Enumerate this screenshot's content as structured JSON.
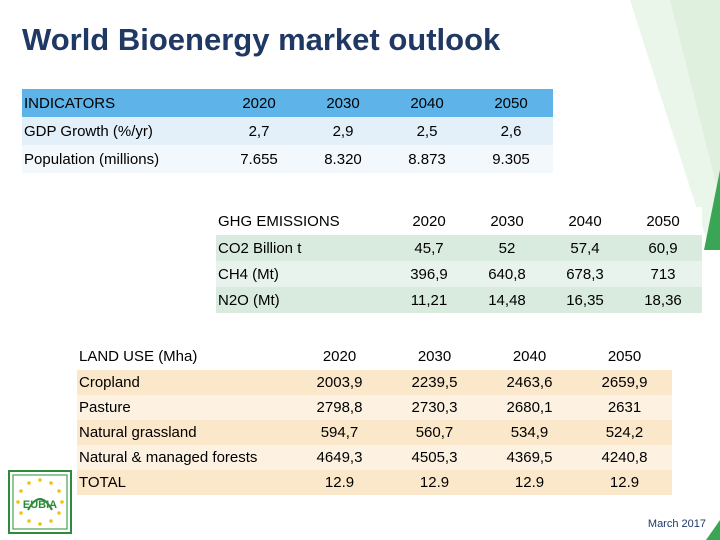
{
  "title": "World Bioenergy market outlook",
  "indicators": {
    "header": [
      "INDICATORS",
      "2020",
      "2030",
      "2040",
      "2050"
    ],
    "rows": [
      {
        "label": "GDP Growth (%/yr)",
        "values": [
          "2,7",
          "2,9",
          "2,5",
          "2,6"
        ]
      },
      {
        "label": "Population (millions)",
        "values": [
          "7.655",
          "8.320",
          "8.873",
          "9.305"
        ]
      }
    ]
  },
  "ghg": {
    "header": [
      "GHG EMISSIONS",
      "2020",
      "2030",
      "2040",
      "2050"
    ],
    "rows": [
      {
        "label": "CO2  Billion t",
        "values": [
          "45,7",
          "52",
          "57,4",
          "60,9"
        ]
      },
      {
        "label": "CH4 (Mt)",
        "values": [
          "396,9",
          "640,8",
          "678,3",
          "713"
        ]
      },
      {
        "label": "N2O (Mt)",
        "values": [
          "11,21",
          "14,48",
          "16,35",
          "18,36"
        ]
      }
    ]
  },
  "land_use": {
    "header": [
      "LAND USE (Mha)",
      "2020",
      "2030",
      "2040",
      "2050"
    ],
    "rows": [
      {
        "label": "Cropland",
        "values": [
          "2003,9",
          "2239,5",
          "2463,6",
          "2659,9"
        ]
      },
      {
        "label": "Pasture",
        "values": [
          "2798,8",
          "2730,3",
          "2680,1",
          "2631"
        ]
      },
      {
        "label": "Natural grassland",
        "values": [
          "594,7",
          "560,7",
          "534,9",
          "524,2"
        ]
      },
      {
        "label": "Natural & managed  forests",
        "values": [
          "4649,3",
          "4505,3",
          "4369,5",
          "4240,8"
        ]
      },
      {
        "label": "TOTAL",
        "values": [
          "12.9",
          "12.9",
          "12.9",
          "12.9"
        ]
      }
    ]
  },
  "logo": {
    "text": "EUBIA",
    "color": "#2e8b3a"
  },
  "footer": "March 2017",
  "colors": {
    "title": "#1f3864",
    "accent_green": "#3aa655",
    "indicator_header": "#5eb3e8"
  }
}
